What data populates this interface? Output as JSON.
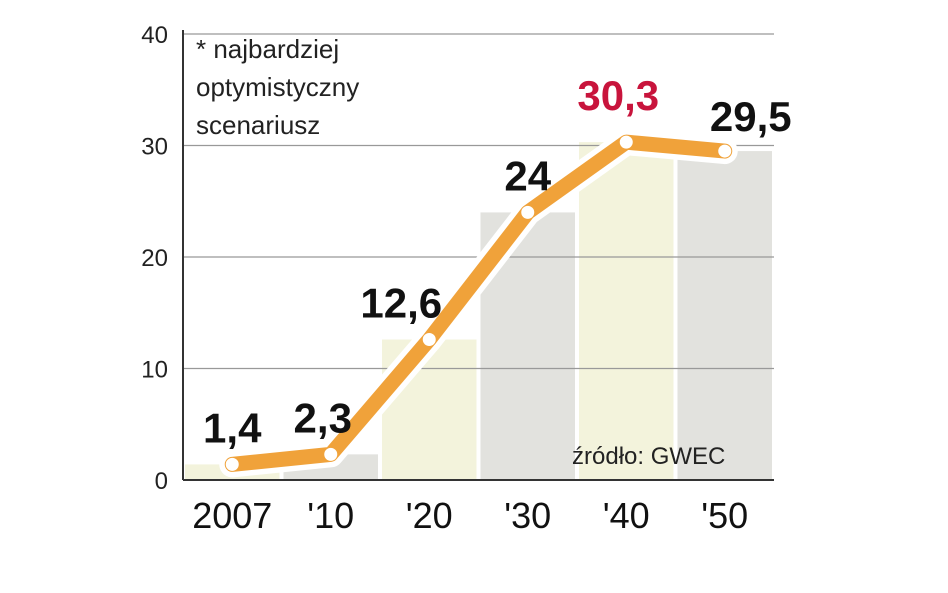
{
  "chart_data": {
    "type": "line",
    "categories": [
      "2007",
      "'10",
      "'20",
      "'30",
      "'40",
      "'50"
    ],
    "values": [
      1.4,
      2.3,
      12.6,
      24,
      30.3,
      29.5
    ],
    "data_labels": [
      "1,4",
      "2,3",
      "12,6",
      "24",
      "30,3",
      "29,5"
    ],
    "highlight_index": 4,
    "y_ticks": [
      "0",
      "10",
      "20",
      "30",
      "40"
    ],
    "ylim": [
      0,
      40
    ],
    "note_lines": [
      "* najbardziej",
      "optymistyczny",
      "scenariusz"
    ],
    "source": "źródło: GWEC",
    "colors": {
      "line": "#f0a23a",
      "line_halo": "#ffffff",
      "marker_fill": "#ffffff",
      "highlight_label": "#c8143c",
      "band_yellow": "#f3f3dc",
      "band_gray": "#e2e2de",
      "grid": "#999999",
      "axis": "#333333"
    },
    "bands": [
      "yellow",
      "gray",
      "yellow",
      "gray",
      "yellow",
      "gray"
    ]
  }
}
